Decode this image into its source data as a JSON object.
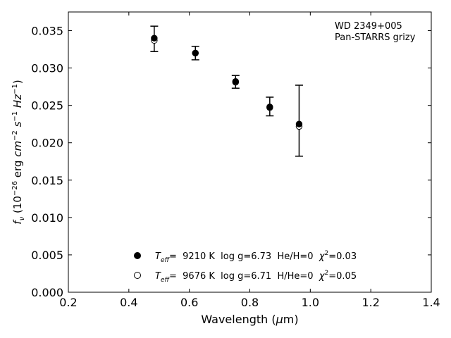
{
  "chart_data": {
    "type": "scatter",
    "xlabel": "Wavelength (μm)",
    "ylabel": "fν (10⁻²⁶ erg cm⁻² s⁻¹ Hz⁻¹)",
    "xlim": [
      0.2,
      1.4
    ],
    "ylim": [
      0.0,
      0.0375
    ],
    "x_ticks": [
      "0.2",
      "0.4",
      "0.6",
      "0.8",
      "1.0",
      "1.2",
      "1.4"
    ],
    "y_ticks": [
      "0.000",
      "0.005",
      "0.010",
      "0.015",
      "0.020",
      "0.025",
      "0.030",
      "0.035"
    ],
    "annotation": {
      "object": "WD 2349+005",
      "survey": "Pan-STARRS grizy"
    },
    "observed": {
      "x": [
        0.484,
        0.62,
        0.753,
        0.866,
        0.963
      ],
      "y": [
        0.0339,
        0.032,
        0.0281,
        0.0248,
        0.0225
      ],
      "yerr_low": [
        0.0322,
        0.0311,
        0.0273,
        0.0236,
        0.0182
      ],
      "yerr_high": [
        0.0356,
        0.0329,
        0.029,
        0.0261,
        0.0277
      ]
    },
    "series": [
      {
        "marker": "filled-circle",
        "label_parts": [
          "T",
          "eff",
          "=  9210 K  log g=6.73  He/H=0  ",
          "χ",
          "2",
          "=0.03"
        ],
        "x": [
          0.484,
          0.62,
          0.753,
          0.866,
          0.963
        ],
        "y": [
          0.034,
          0.032,
          0.0282,
          0.0248,
          0.0225
        ]
      },
      {
        "marker": "open-circle",
        "label_parts": [
          "T",
          "eff",
          "=  9676 K  log g=6.71  H/He=0  ",
          "χ",
          "2",
          "=0.05"
        ],
        "x": [
          0.484,
          0.62,
          0.753,
          0.866,
          0.963
        ],
        "y": [
          0.0337,
          0.032,
          0.0281,
          0.0247,
          0.0222
        ]
      }
    ],
    "legend_placement": "lower-center",
    "grid": false
  }
}
